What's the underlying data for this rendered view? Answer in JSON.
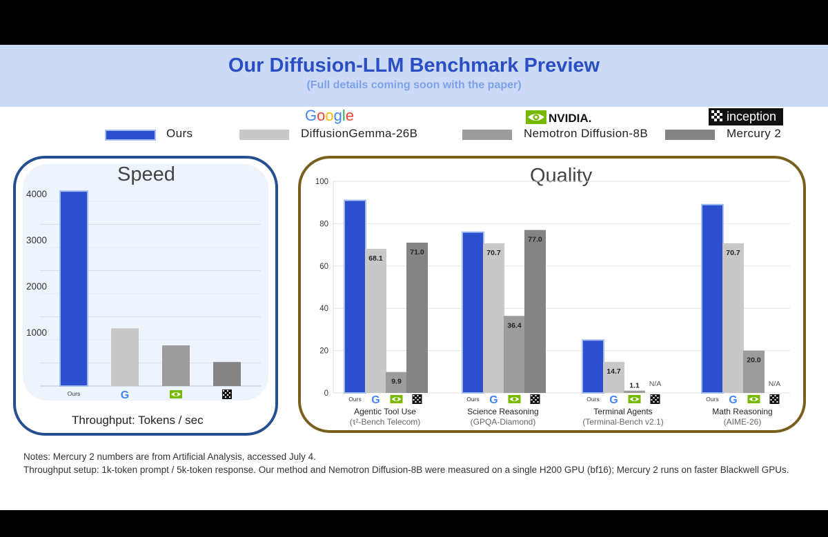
{
  "header": {
    "title": "Our Diffusion-LLM Benchmark Preview",
    "subtitle": "(Full details coming soon with the paper)"
  },
  "brands": {
    "google": "Google",
    "nvidia": "NVIDIA.",
    "inception": "inception"
  },
  "legend": {
    "ours": "Ours",
    "gemma": "DiffusionGemma-26B",
    "nemotron": "Nemotron Diffusion-8B",
    "mercury": "Mercury 2"
  },
  "colors": {
    "ours": "#2b4fcd",
    "ours_border": "#a3bdf0",
    "gemma": "#c8c8c8",
    "nemotron": "#9c9c9c",
    "mercury": "#848484",
    "speed_border": "#264f91",
    "quality_border": "#7a5e1c",
    "title": "#2a4fc4",
    "subtitle": "#7ea1e8"
  },
  "icons": [
    "google-g-icon",
    "nvidia-eye-icon",
    "inception-logo-icon"
  ],
  "speed": {
    "title": "Speed",
    "x_title": "Throughput: Tokens / sec"
  },
  "quality": {
    "title": "Quality"
  },
  "chart_data": [
    {
      "type": "bar",
      "title": "Speed",
      "xlabel": "Throughput: Tokens / sec",
      "ylabel": "",
      "ylim": [
        0,
        5000
      ],
      "yticks": [
        1000,
        2000,
        3000,
        4000
      ],
      "categories": [
        "Ours",
        "DiffusionGemma-26B",
        "Nemotron Diffusion-8B",
        "Mercury 2"
      ],
      "values": [
        4220,
        1250,
        880,
        520
      ],
      "tick_labels": [
        {
          "text": "Ours"
        },
        {
          "icon": "google-g-icon"
        },
        {
          "icon": "nvidia-eye-icon"
        },
        {
          "icon": "inception-logo-icon"
        }
      ],
      "grid": true
    },
    {
      "type": "bar",
      "title": "Quality",
      "xlabel": "",
      "ylabel": "",
      "ylim": [
        0,
        100
      ],
      "yticks": [
        0,
        20,
        40,
        60,
        80,
        100
      ],
      "grid": true,
      "groups": [
        {
          "name": "Agentic Tool Use",
          "sub": "(τ²-Bench Telecom)"
        },
        {
          "name": "Science Reasoning",
          "sub": "(GPQA-Diamond)"
        },
        {
          "name": "Terminal Agents",
          "sub": "(Terminal-Bench v2.1)"
        },
        {
          "name": "Math Reasoning",
          "sub": "(AIME-26)"
        }
      ],
      "series": [
        {
          "name": "Ours",
          "values": [
            91,
            76,
            25,
            89
          ],
          "labels": [
            "",
            "",
            "",
            ""
          ]
        },
        {
          "name": "DiffusionGemma-26B",
          "values": [
            68.1,
            70.7,
            14.7,
            70.7
          ],
          "labels": [
            "68.1",
            "70.7",
            "14.7",
            "70.7"
          ]
        },
        {
          "name": "Nemotron Diffusion-8B",
          "values": [
            9.9,
            36.4,
            1.1,
            20.0
          ],
          "labels": [
            "9.9",
            "36.4",
            "1.1",
            "20.0"
          ]
        },
        {
          "name": "Mercury 2",
          "values": [
            71.0,
            77.0,
            null,
            null
          ],
          "labels": [
            "71.0",
            "77.0",
            "N/A",
            "N/A"
          ]
        }
      ]
    }
  ],
  "notes": {
    "line1": "Notes: Mercury 2 numbers are from Artificial Analysis, accessed July 4.",
    "line2": "Throughput setup: 1k-token prompt / 5k-token response. Our method and Nemotron Diffusion-8B were measured on a single H200 GPU (bf16); Mercury 2 runs on faster Blackwell GPUs."
  }
}
